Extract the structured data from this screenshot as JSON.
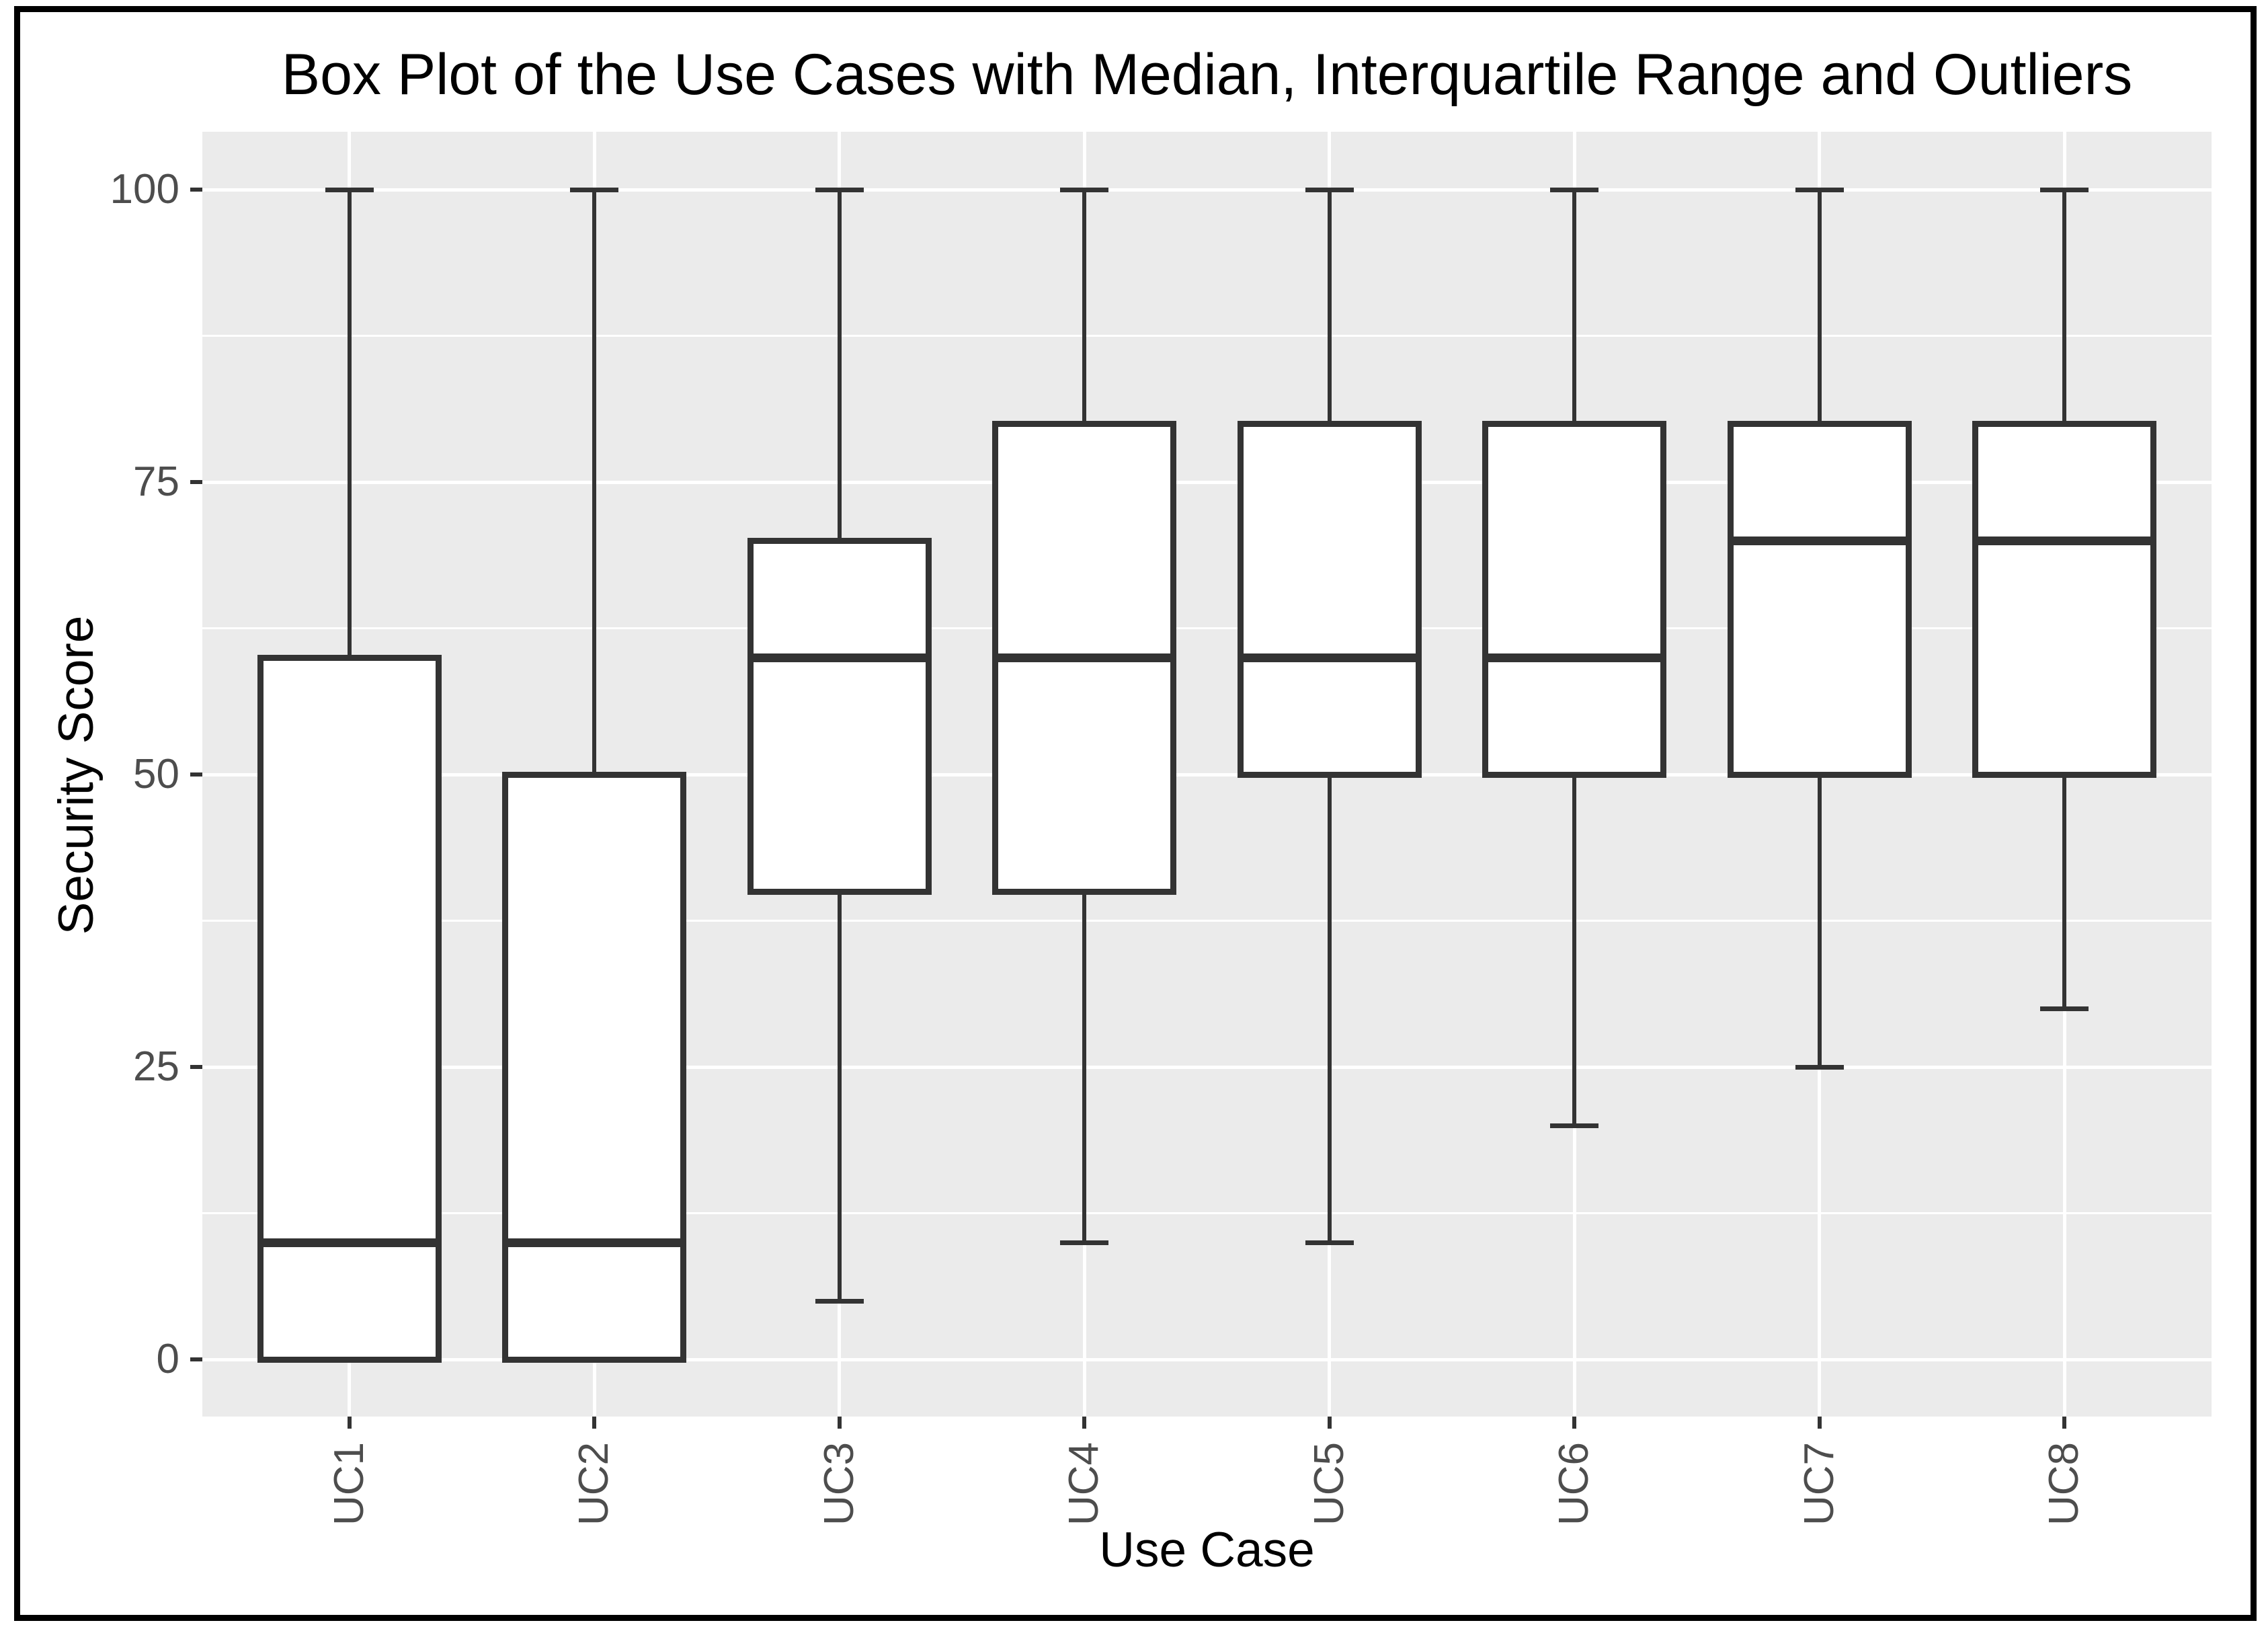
{
  "chart_data": {
    "type": "boxplot",
    "title": "Box Plot of the Use Cases with Median, Interquartile Range and Outliers",
    "xlabel": "Use Case",
    "ylabel": "Security Score",
    "categories": [
      "UC1",
      "UC2",
      "UC3",
      "UC4",
      "UC5",
      "UC6",
      "UC7",
      "UC8"
    ],
    "boxes": [
      {
        "category": "UC1",
        "min": 0,
        "q1": 0,
        "median": 10,
        "q3": 60,
        "max": 100,
        "outliers": []
      },
      {
        "category": "UC2",
        "min": 0,
        "q1": 0,
        "median": 10,
        "q3": 50,
        "max": 100,
        "outliers": []
      },
      {
        "category": "UC3",
        "min": 5,
        "q1": 40,
        "median": 60,
        "q3": 70,
        "max": 100,
        "outliers": []
      },
      {
        "category": "UC4",
        "min": 10,
        "q1": 40,
        "median": 60,
        "q3": 80,
        "max": 100,
        "outliers": []
      },
      {
        "category": "UC5",
        "min": 10,
        "q1": 50,
        "median": 60,
        "q3": 80,
        "max": 100,
        "outliers": []
      },
      {
        "category": "UC6",
        "min": 20,
        "q1": 50,
        "median": 60,
        "q3": 80,
        "max": 100,
        "outliers": []
      },
      {
        "category": "UC7",
        "min": 25,
        "q1": 50,
        "median": 70,
        "q3": 80,
        "max": 100,
        "outliers": []
      },
      {
        "category": "UC8",
        "min": 30,
        "q1": 50,
        "median": 70,
        "q3": 80,
        "max": 100,
        "outliers": []
      }
    ],
    "y_axis": {
      "range": [
        0,
        100
      ],
      "major_ticks": [
        0,
        25,
        50,
        75,
        100
      ],
      "tick_labels": [
        "0",
        "25",
        "50",
        "75",
        "100"
      ],
      "minor_gridlines": [
        12.5,
        37.5,
        62.5,
        87.5
      ]
    },
    "x_axis": {
      "tick_labels": [
        "UC1",
        "UC2",
        "UC3",
        "UC4",
        "UC5",
        "UC6",
        "UC7",
        "UC8"
      ],
      "label_rotation_deg": 90
    },
    "legend": "none",
    "grid": "horizontal major+minor, vertical major per category",
    "colors": {
      "panel_background": "#ebebeb",
      "gridline": "#ffffff",
      "box_stroke": "#333333",
      "box_fill": "#ffffff",
      "axis_text": "#4d4d4d",
      "title_text": "#000000",
      "figure_border": "#000000"
    }
  }
}
